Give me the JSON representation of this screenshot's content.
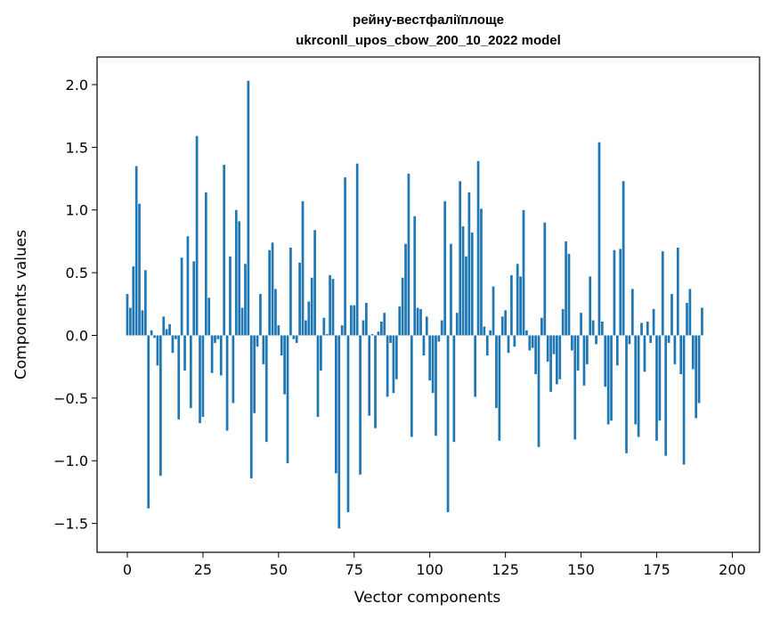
{
  "chart_data": {
    "type": "bar",
    "title_lines": [
      "рейну-вестфаліїплоще",
      "ukrconll_upos_cbow_200_10_2022 model"
    ],
    "xlabel": "Vector components",
    "ylabel": "Components values",
    "xlim": [
      -10,
      209
    ],
    "ylim": [
      -1.73,
      2.22
    ],
    "xticks": [
      0,
      25,
      50,
      75,
      100,
      125,
      150,
      175,
      200
    ],
    "yticks": [
      -1.5,
      -1.0,
      -0.5,
      0.0,
      0.5,
      1.0,
      1.5,
      2.0
    ],
    "ytick_labels": [
      "−1.5",
      "−1.0",
      "−0.5",
      "0.0",
      "0.5",
      "1.0",
      "1.5",
      "2.0"
    ],
    "grid": false,
    "bar_color": "#1f77b4",
    "values": [
      0.33,
      0.22,
      0.55,
      1.35,
      1.05,
      0.2,
      0.52,
      -1.38,
      0.04,
      -0.02,
      -0.24,
      -1.12,
      0.15,
      0.05,
      0.09,
      -0.14,
      -0.03,
      -0.67,
      0.62,
      -0.28,
      0.79,
      -0.58,
      0.59,
      1.59,
      -0.7,
      -0.65,
      1.14,
      0.3,
      -0.3,
      -0.06,
      -0.03,
      -0.32,
      1.36,
      -0.76,
      0.63,
      -0.54,
      1.0,
      0.91,
      0.22,
      0.57,
      2.03,
      -1.14,
      -0.62,
      -0.09,
      0.33,
      -0.23,
      -0.85,
      0.68,
      0.74,
      0.37,
      0.08,
      -0.16,
      -0.47,
      -1.02,
      0.7,
      -0.03,
      -0.06,
      0.58,
      1.07,
      0.12,
      0.27,
      0.46,
      0.84,
      -0.65,
      -0.28,
      0.14,
      0.01,
      0.48,
      0.45,
      -1.1,
      -1.54,
      0.08,
      1.26,
      -1.41,
      0.24,
      0.24,
      1.37,
      -1.11,
      0.12,
      0.26,
      -0.64,
      0.01,
      -0.74,
      0.03,
      0.11,
      0.18,
      -0.49,
      -0.06,
      -0.46,
      -0.35,
      0.23,
      0.46,
      0.73,
      1.29,
      -0.81,
      0.95,
      0.22,
      0.21,
      -0.16,
      0.15,
      -0.36,
      -0.46,
      -0.8,
      -0.05,
      0.12,
      1.07,
      -1.41,
      0.73,
      -0.85,
      0.18,
      1.23,
      0.87,
      0.63,
      1.14,
      0.82,
      -0.49,
      1.39,
      1.01,
      0.07,
      -0.16,
      0.04,
      0.39,
      -0.58,
      -0.84,
      0.15,
      0.2,
      -0.14,
      0.48,
      -0.09,
      0.57,
      0.47,
      1.0,
      0.04,
      -0.12,
      -0.1,
      -0.31,
      -0.89,
      0.14,
      0.9,
      -0.21,
      -0.45,
      -0.15,
      -0.39,
      -0.35,
      0.21,
      0.75,
      0.65,
      -0.12,
      -0.83,
      -0.28,
      0.18,
      -0.4,
      -0.23,
      0.47,
      0.12,
      -0.07,
      1.54,
      0.11,
      -0.41,
      -0.71,
      -0.68,
      0.68,
      -0.24,
      0.69,
      1.23,
      -0.94,
      -0.07,
      0.37,
      -0.71,
      -0.81,
      0.1,
      -0.29,
      0.11,
      -0.06,
      0.21,
      -0.84,
      -0.68,
      0.67,
      -0.96,
      -0.06,
      0.33,
      -0.23,
      0.7,
      -0.31,
      -1.03,
      0.26,
      0.37,
      -0.27,
      -0.66,
      -0.54,
      0.22
    ]
  }
}
